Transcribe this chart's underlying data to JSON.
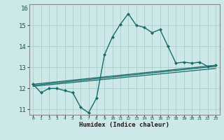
{
  "title": "",
  "xlabel": "Humidex (Indice chaleur)",
  "ylabel": "",
  "background_color": "#cde8e8",
  "grid_color": "#b0d0d0",
  "line_color": "#1a6b6b",
  "xlim": [
    -0.5,
    23.5
  ],
  "ylim": [
    10.75,
    16.0
  ],
  "yticks": [
    11,
    12,
    13,
    14,
    15
  ],
  "ytick_top": 16,
  "xticks": [
    0,
    1,
    2,
    3,
    4,
    5,
    6,
    7,
    8,
    9,
    10,
    11,
    12,
    13,
    14,
    15,
    16,
    17,
    18,
    19,
    20,
    21,
    22,
    23
  ],
  "main_x": [
    0,
    1,
    2,
    3,
    4,
    5,
    6,
    7,
    8,
    9,
    10,
    11,
    12,
    13,
    14,
    15,
    16,
    17,
    18,
    19,
    20,
    21,
    22,
    23
  ],
  "main_y": [
    12.2,
    11.8,
    12.0,
    12.0,
    11.9,
    11.8,
    11.1,
    10.85,
    11.55,
    13.6,
    14.45,
    15.05,
    15.55,
    15.0,
    14.9,
    14.65,
    14.8,
    14.0,
    13.2,
    13.25,
    13.2,
    13.25,
    13.05,
    13.1
  ],
  "line2_x": [
    0,
    23
  ],
  "line2_y": [
    12.2,
    13.1
  ],
  "line3_x": [
    0,
    23
  ],
  "line3_y": [
    12.15,
    13.05
  ],
  "line4_x": [
    0,
    23
  ],
  "line4_y": [
    12.1,
    12.95
  ]
}
